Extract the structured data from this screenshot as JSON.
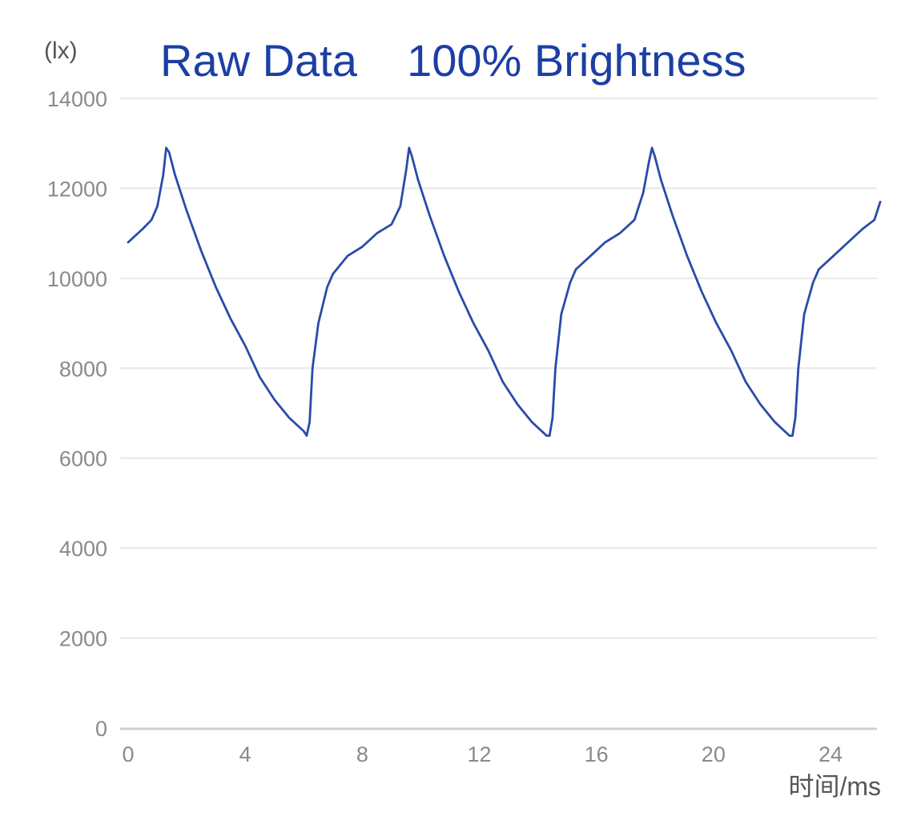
{
  "chart_data": {
    "type": "line",
    "title": "Raw Data    100% Brightness",
    "ylabel": "(lx)",
    "xlabel": "时间/ms",
    "xlim": [
      0,
      25.7
    ],
    "ylim": [
      0,
      14000
    ],
    "xticks": [
      0,
      4,
      8,
      12,
      16,
      20,
      24
    ],
    "yticks": [
      0,
      2000,
      4000,
      6000,
      8000,
      10000,
      12000,
      14000
    ],
    "grid": true,
    "legend": "none",
    "colors": {
      "title": "#1c3fa3",
      "line": "#2a4ba8",
      "tick_label": "#8a8a8a",
      "axis_label": "#555555",
      "grid": "#ececec",
      "axis": "#d0d0d0"
    },
    "series": [
      {
        "x": [
          0,
          0.5,
          0.8,
          1.0,
          1.2,
          1.3,
          1.4,
          1.6,
          2.0,
          2.5,
          3.0,
          3.5,
          4.0,
          4.5,
          5.0,
          5.5,
          6.0,
          6.1,
          6.2,
          6.3,
          6.5,
          6.8,
          7.0,
          7.5,
          8.0,
          8.5,
          9.0,
          9.3,
          9.5,
          9.6,
          9.7,
          9.9,
          10.3,
          10.8,
          11.3,
          11.8,
          12.3,
          12.8,
          13.3,
          13.8,
          14.3,
          14.4,
          14.5,
          14.6,
          14.8,
          15.1,
          15.3,
          15.8,
          16.3,
          16.8,
          17.3,
          17.6,
          17.8,
          17.9,
          18.0,
          18.2,
          18.6,
          19.1,
          19.6,
          20.1,
          20.6,
          21.1,
          21.6,
          22.1,
          22.6,
          22.7,
          22.8,
          22.9,
          23.1,
          23.4,
          23.6,
          24.1,
          24.6,
          25.1,
          25.5,
          25.7
        ],
        "y": [
          10800,
          11100,
          11300,
          11600,
          12300,
          12900,
          12800,
          12300,
          11500,
          10600,
          9800,
          9100,
          8500,
          7800,
          7300,
          6900,
          6600,
          6500,
          6800,
          8000,
          9000,
          9800,
          10100,
          10500,
          10700,
          11000,
          11200,
          11600,
          12400,
          12900,
          12700,
          12200,
          11400,
          10500,
          9700,
          9000,
          8400,
          7700,
          7200,
          6800,
          6500,
          6500,
          6900,
          8000,
          9200,
          9900,
          10200,
          10500,
          10800,
          11000,
          11300,
          11900,
          12600,
          12900,
          12700,
          12200,
          11400,
          10500,
          9700,
          9000,
          8400,
          7700,
          7200,
          6800,
          6500,
          6500,
          6900,
          8000,
          9200,
          9900,
          10200,
          10500,
          10800,
          11100,
          11300,
          11700
        ]
      }
    ]
  }
}
